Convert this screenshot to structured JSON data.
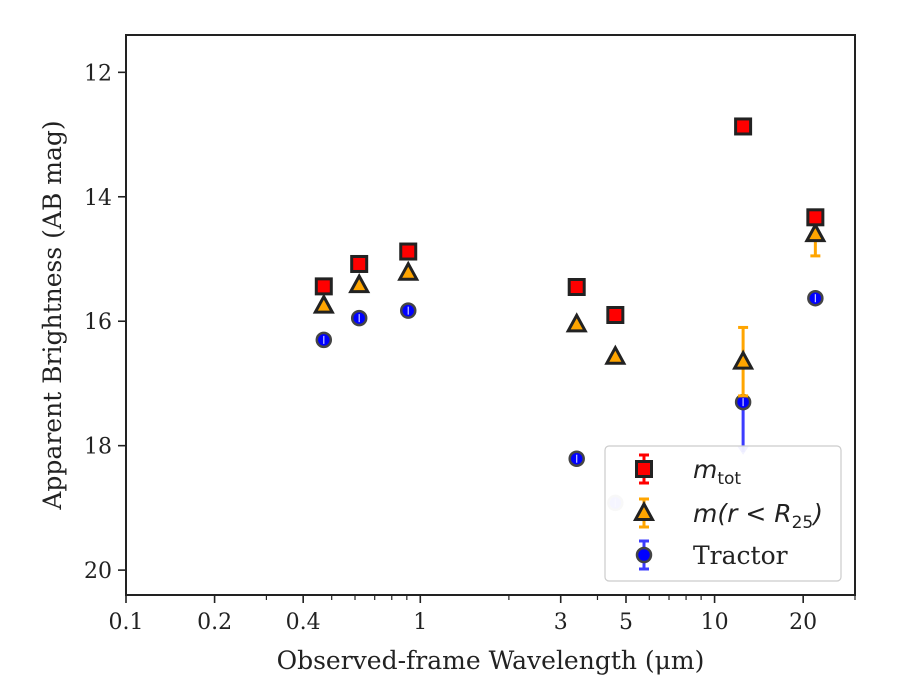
{
  "chart_data": {
    "type": "scatter",
    "xscale": "log",
    "xlim": [
      0.1,
      30
    ],
    "ylim": [
      20.4,
      11.4
    ],
    "yaxis_inverted": true,
    "xlabel": "Observed-frame Wavelength (μm)",
    "ylabel": "Apparent Brightness (AB mag)",
    "xticks": [
      {
        "value": 0.1,
        "label": "0.1"
      },
      {
        "value": 0.2,
        "label": "0.2"
      },
      {
        "value": 0.4,
        "label": "0.4"
      },
      {
        "value": 1,
        "label": "1"
      },
      {
        "value": 3,
        "label": "3"
      },
      {
        "value": 5,
        "label": "5"
      },
      {
        "value": 10,
        "label": "10"
      },
      {
        "value": 20,
        "label": "20"
      }
    ],
    "yticks": [
      {
        "value": 12,
        "label": "12"
      },
      {
        "value": 14,
        "label": "14"
      },
      {
        "value": 16,
        "label": "16"
      },
      {
        "value": 18,
        "label": "18"
      },
      {
        "value": 20,
        "label": "20"
      }
    ],
    "legend_position": "lower-right",
    "series": [
      {
        "name": "m_tot",
        "marker": "square",
        "color": "#ff0000",
        "edge_color": "#222222",
        "errbar_color": "#ff0000",
        "points": [
          {
            "x": 0.47,
            "y": 15.44,
            "err": 0.03
          },
          {
            "x": 0.62,
            "y": 15.08,
            "err": 0.03
          },
          {
            "x": 0.91,
            "y": 14.88,
            "err": 0.03
          },
          {
            "x": 3.4,
            "y": 15.45,
            "err": 0.03
          },
          {
            "x": 4.6,
            "y": 15.9,
            "err": 0.03
          },
          {
            "x": 12.5,
            "y": 12.87,
            "err": 0.03
          },
          {
            "x": 22,
            "y": 14.33,
            "err": 0.03
          }
        ]
      },
      {
        "name": "m(r<R25)",
        "marker": "triangle",
        "color": "#ffa500",
        "edge_color": "#222222",
        "errbar_color": "#ffa500",
        "points": [
          {
            "x": 0.47,
            "y": 15.75,
            "err": 0.03
          },
          {
            "x": 0.62,
            "y": 15.42,
            "err": 0.03
          },
          {
            "x": 0.91,
            "y": 15.22,
            "err": 0.03
          },
          {
            "x": 3.4,
            "y": 16.05,
            "err": 0.03
          },
          {
            "x": 4.6,
            "y": 16.57,
            "err": 0.03
          },
          {
            "x": 12.5,
            "y": 16.65,
            "err": 0.55
          },
          {
            "x": 22,
            "y": 14.6,
            "err": 0.35
          }
        ]
      },
      {
        "name": "Tractor",
        "marker": "circle",
        "color": "#0000ff",
        "edge_color": "#222222",
        "errbar_color": "#3c3cff",
        "points": [
          {
            "x": 0.47,
            "y": 16.3,
            "err": 0.03
          },
          {
            "x": 0.62,
            "y": 15.95,
            "err": 0.03
          },
          {
            "x": 0.91,
            "y": 15.83,
            "err": 0.03
          },
          {
            "x": 3.4,
            "y": 18.21,
            "err": 0.03
          },
          {
            "x": 4.6,
            "y": 18.92,
            "err": 0.03
          },
          {
            "x": 12.5,
            "y": 17.3,
            "err_low": 0.05,
            "err_high": 0.8
          },
          {
            "x": 22,
            "y": 15.63,
            "err": 0.03
          }
        ]
      }
    ]
  },
  "legend": {
    "items": [
      {
        "key": "m_tot",
        "base": "m",
        "sub": "tot",
        "suffix": "",
        "style": "math"
      },
      {
        "key": "m_r_R25",
        "base": "m(r < R",
        "sub": "25",
        "suffix": ")",
        "style": "math"
      },
      {
        "key": "tractor",
        "base": "Tractor",
        "sub": "",
        "suffix": "",
        "style": "text"
      }
    ]
  }
}
